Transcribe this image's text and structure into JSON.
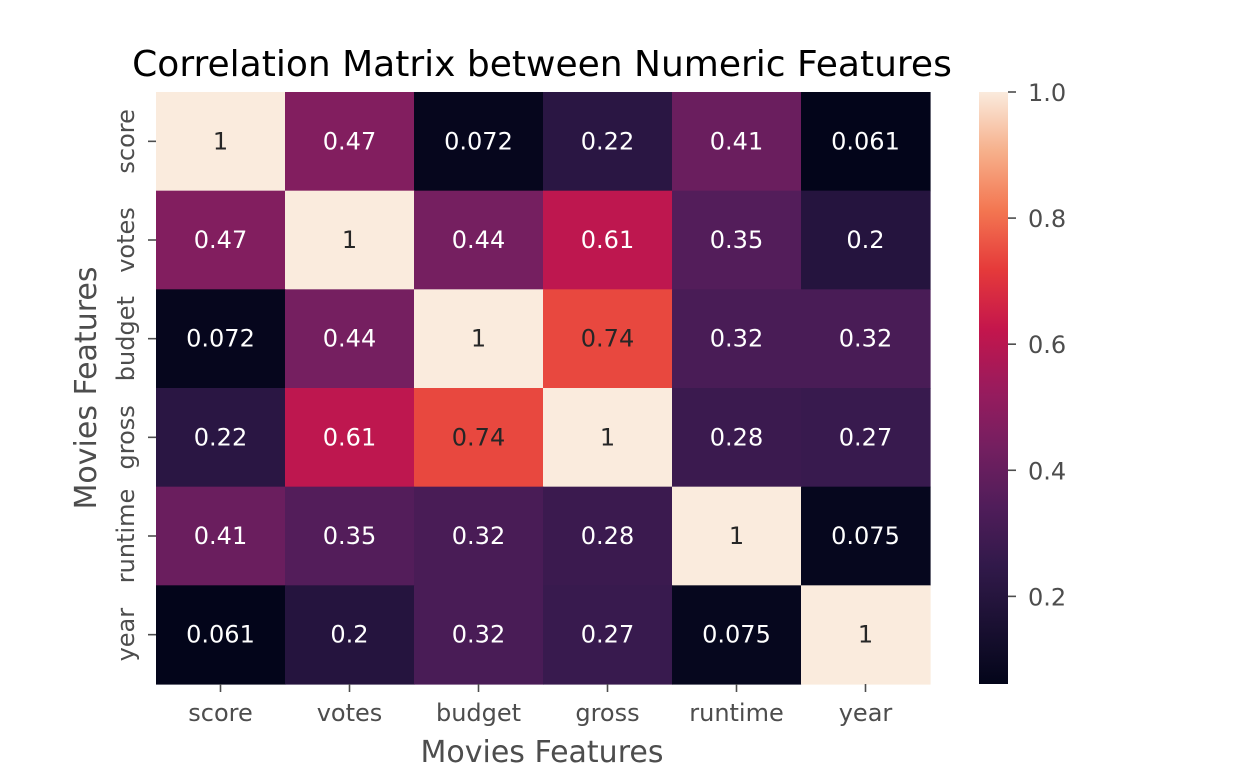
{
  "chart_data": {
    "type": "heatmap",
    "title": "Correlation Matrix between Numeric Features",
    "xlabel": "Movies Features",
    "ylabel": "Movies Features",
    "rows": [
      "score",
      "votes",
      "budget",
      "gross",
      "runtime",
      "year"
    ],
    "columns": [
      "score",
      "votes",
      "budget",
      "gross",
      "runtime",
      "year"
    ],
    "values": [
      [
        1,
        0.47,
        0.072,
        0.22,
        0.41,
        0.061
      ],
      [
        0.47,
        1,
        0.44,
        0.61,
        0.35,
        0.2
      ],
      [
        0.072,
        0.44,
        1,
        0.74,
        0.32,
        0.32
      ],
      [
        0.22,
        0.61,
        0.74,
        1,
        0.28,
        0.27
      ],
      [
        0.41,
        0.35,
        0.32,
        0.28,
        1,
        0.075
      ],
      [
        0.061,
        0.2,
        0.32,
        0.27,
        0.075,
        1
      ]
    ],
    "annotations": [
      [
        "1",
        "0.47",
        "0.072",
        "0.22",
        "0.41",
        "0.061"
      ],
      [
        "0.47",
        "1",
        "0.44",
        "0.61",
        "0.35",
        "0.2"
      ],
      [
        "0.072",
        "0.44",
        "1",
        "0.74",
        "0.32",
        "0.32"
      ],
      [
        "0.22",
        "0.61",
        "0.74",
        "1",
        "0.28",
        "0.27"
      ],
      [
        "0.41",
        "0.35",
        "0.32",
        "0.28",
        "1",
        "0.075"
      ],
      [
        "0.061",
        "0.2",
        "0.32",
        "0.27",
        "0.075",
        "1"
      ]
    ],
    "colormap": "rocket",
    "colorbar": {
      "range": [
        0.061,
        1.0
      ],
      "ticks": [
        0.2,
        0.4,
        0.6,
        0.8,
        1.0
      ],
      "tick_labels": [
        "0.2",
        "0.4",
        "0.6",
        "0.8",
        "1.0"
      ],
      "placement": "right"
    },
    "grid": false,
    "colors": {
      "text_on_dark": "#ffffff",
      "text_on_light": "#262626",
      "axis_text": "#4d4d4d"
    }
  }
}
